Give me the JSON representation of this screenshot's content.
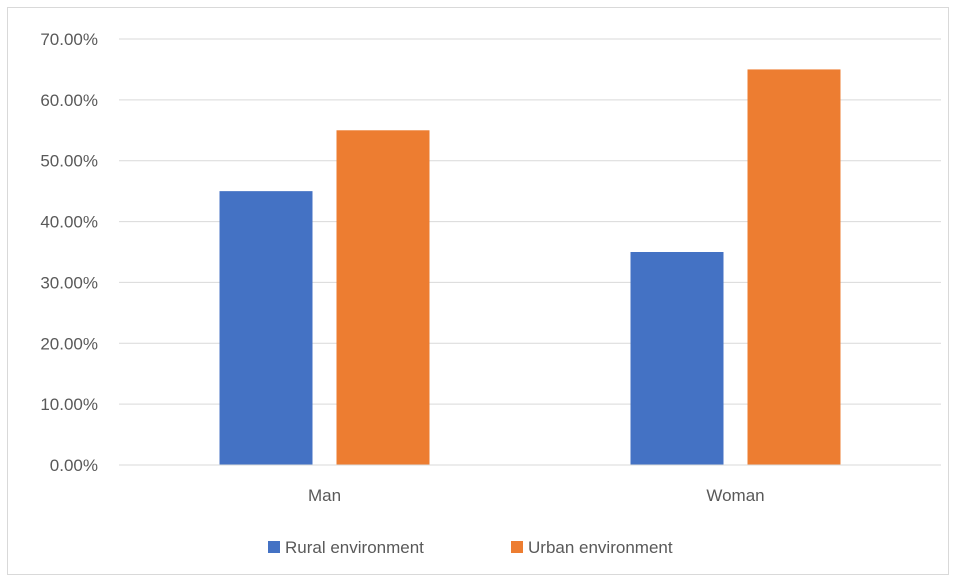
{
  "chart_data": {
    "type": "bar",
    "categories": [
      "Man",
      "Woman"
    ],
    "series": [
      {
        "name": "Rural environment",
        "color": "#4472c4",
        "values": [
          45,
          35
        ]
      },
      {
        "name": "Urban environment",
        "color": "#ed7d31",
        "values": [
          55,
          65
        ]
      }
    ],
    "ylim": [
      0,
      70
    ],
    "yticks": [
      "0.00%",
      "10.00%",
      "20.00%",
      "30.00%",
      "40.00%",
      "50.00%",
      "60.00%",
      "70.00%"
    ],
    "grid": true,
    "legend": "bottom",
    "title": "",
    "xlabel": "",
    "ylabel": ""
  }
}
